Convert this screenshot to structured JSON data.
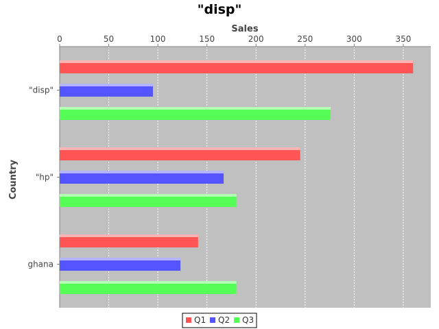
{
  "chart_data": {
    "type": "bar",
    "orientation": "horizontal",
    "title": "\"disp\"",
    "xlabel": "Sales",
    "ylabel": "Country",
    "categories": [
      "\"disp\"",
      "\"hp\"",
      "ghana"
    ],
    "series": [
      {
        "name": "Q1",
        "color": "#ff5555",
        "values": [
          360,
          245,
          141
        ]
      },
      {
        "name": "Q2",
        "color": "#5555ff",
        "values": [
          95,
          167,
          123
        ]
      },
      {
        "name": "Q3",
        "color": "#55ff55",
        "values": [
          276,
          180,
          180
        ]
      }
    ],
    "xlim": [
      0,
      378
    ],
    "xticks": [
      0,
      50,
      100,
      150,
      200,
      250,
      300,
      350
    ],
    "grid": true,
    "legend_position": "bottom",
    "plot_background": "#c0c0c0"
  }
}
